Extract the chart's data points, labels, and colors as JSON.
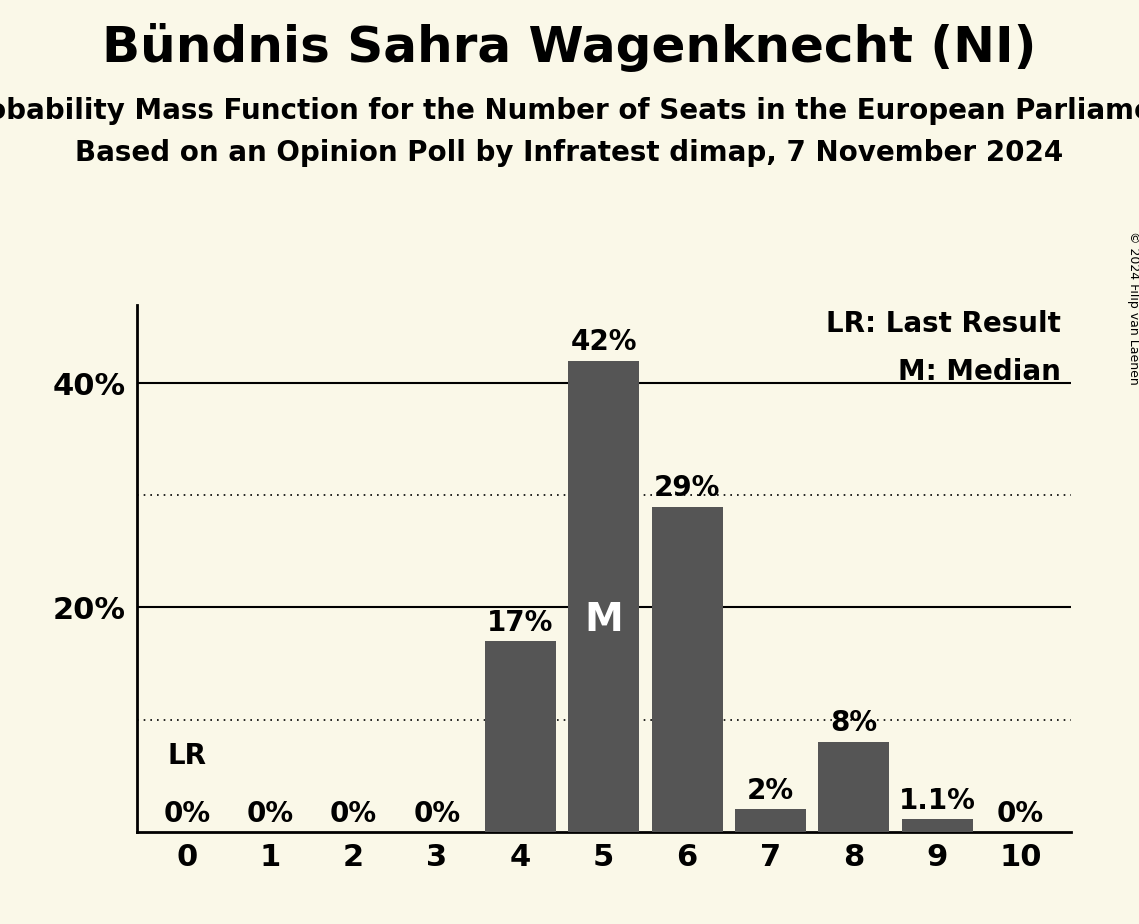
{
  "title": "Bündnis Sahra Wagenknecht (NI)",
  "subtitle1": "Probability Mass Function for the Number of Seats in the European Parliament",
  "subtitle2": "Based on an Opinion Poll by Infratest dimap, 7 November 2024",
  "copyright": "© 2024 Filip van Laenen",
  "seats": [
    0,
    1,
    2,
    3,
    4,
    5,
    6,
    7,
    8,
    9,
    10
  ],
  "probabilities": [
    0.0,
    0.0,
    0.0,
    0.0,
    0.17,
    0.42,
    0.29,
    0.02,
    0.08,
    0.011,
    0.0
  ],
  "bar_labels": [
    "0%",
    "0%",
    "0%",
    "0%",
    "17%",
    "42%",
    "29%",
    "2%",
    "8%",
    "1.1%",
    "0%"
  ],
  "bar_color": "#555555",
  "background_color": "#faf8e8",
  "median_seat": 5,
  "lr_seat": 0,
  "legend_lr": "LR: Last Result",
  "legend_m": "M: Median",
  "ylim": [
    0,
    0.47
  ],
  "yticks": [
    0.0,
    0.2,
    0.4
  ],
  "ytick_labels": [
    "",
    "20%",
    "40%"
  ],
  "solid_lines": [
    0.2,
    0.4
  ],
  "dotted_lines": [
    0.1,
    0.3
  ],
  "title_fontsize": 36,
  "subtitle_fontsize": 20,
  "label_fontsize": 20,
  "tick_fontsize": 22,
  "legend_fontsize": 20,
  "median_fontsize": 28,
  "lr_fontsize": 20,
  "copyright_fontsize": 9
}
